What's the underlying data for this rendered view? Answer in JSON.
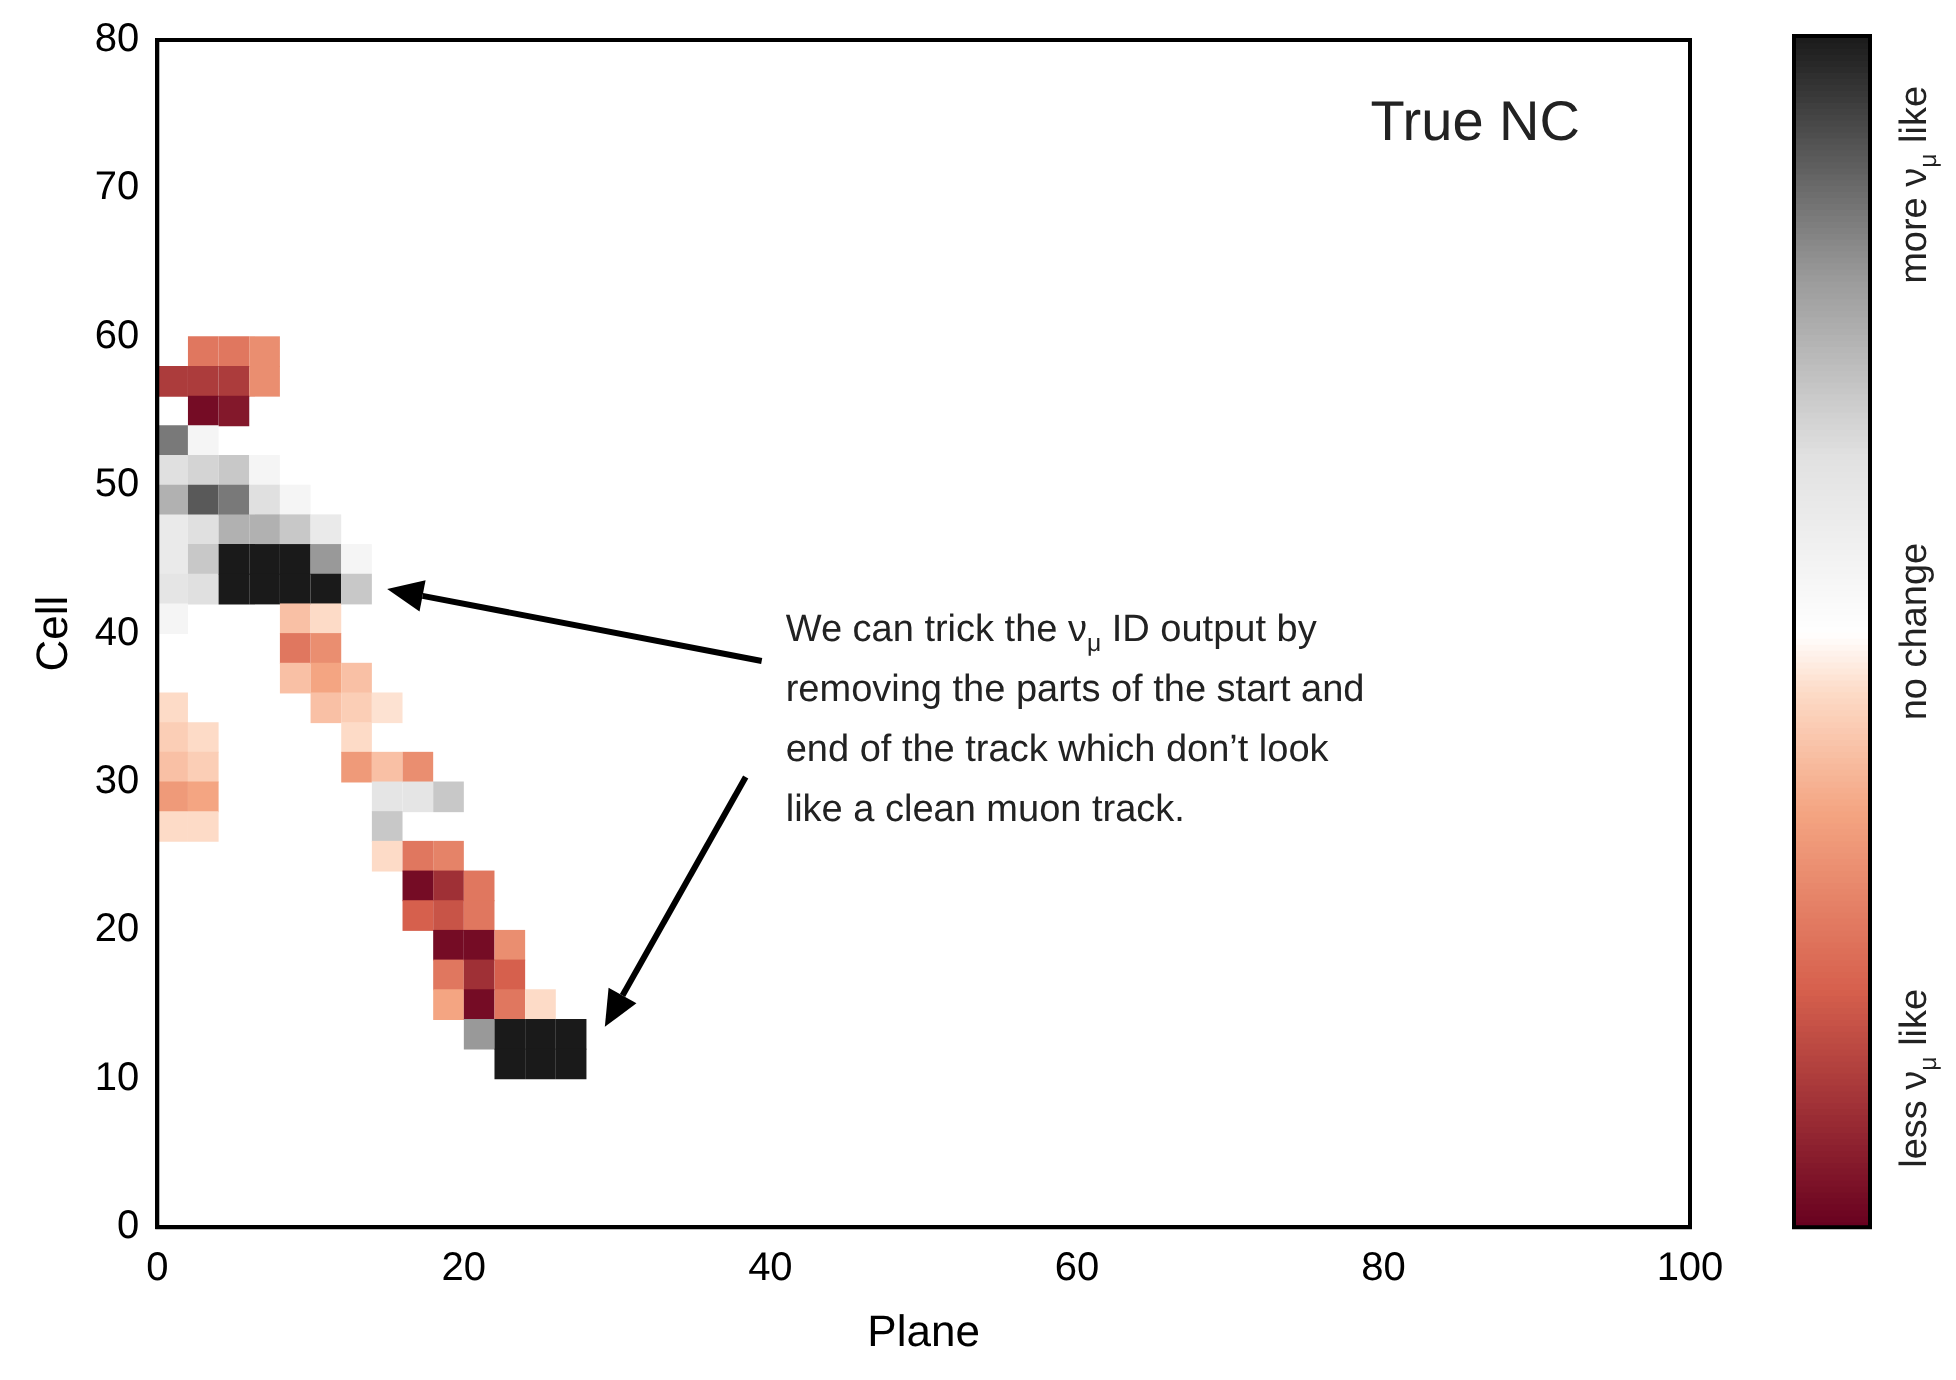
{
  "chart_data": {
    "type": "scatter",
    "xlabel": "Plane",
    "ylabel": "Cell",
    "marker": "square",
    "grid": false,
    "legend": false,
    "xlim": [
      0,
      100
    ],
    "xticks": [
      0,
      20,
      40,
      60,
      80,
      100
    ],
    "ylim": [
      0,
      80
    ],
    "yticks": [
      0,
      10,
      20,
      30,
      40,
      50,
      60,
      70,
      80
    ],
    "clim": [
      -1,
      1
    ],
    "cticks": [
      {
        "value": -0.75,
        "label": "less ν$_{μ}$ like"
      },
      {
        "value": 0,
        "label": "no change"
      },
      {
        "value": 0.75,
        "label": "more ν$_{μ}$ like"
      }
    ],
    "annotations": [
      "True NC",
      "We can trick the ν$_{μ}$ ID output by removing the parts of the start and end of the track which don’t look like a clean muon track."
    ],
    "x": [
      3,
      5,
      7,
      1,
      3,
      5,
      7,
      3,
      5,
      1,
      3,
      1,
      3,
      5,
      7,
      1,
      3,
      5,
      7,
      9,
      1,
      3,
      5,
      7,
      9,
      11,
      1,
      3,
      5,
      7,
      9,
      11,
      13,
      1,
      3,
      5,
      7,
      9,
      11,
      13,
      1,
      9,
      11,
      9,
      11,
      9,
      11,
      13,
      11,
      13,
      15,
      13,
      13,
      15,
      17,
      15,
      17,
      19,
      15,
      15,
      17,
      19,
      17,
      19,
      21,
      17,
      19,
      21,
      19,
      21,
      23,
      19,
      21,
      23,
      19,
      21,
      23,
      25,
      21,
      23,
      25,
      27,
      23,
      25,
      27,
      1,
      1,
      3,
      1,
      3,
      1,
      3,
      1,
      3
    ],
    "values": [
      59,
      59,
      59,
      57,
      57,
      57,
      57,
      55,
      55,
      53,
      53,
      51,
      51,
      51,
      51,
      49,
      49,
      49,
      49,
      49,
      47,
      47,
      47,
      47,
      47,
      47,
      45,
      45,
      45,
      45,
      45,
      45,
      45,
      43,
      43,
      43,
      43,
      43,
      43,
      43,
      41,
      41,
      41,
      39,
      39,
      37,
      37,
      37,
      35,
      35,
      35,
      33,
      31,
      31,
      31,
      29,
      29,
      29,
      27,
      25,
      25,
      25,
      23,
      23,
      23,
      21,
      21,
      21,
      19,
      19,
      19,
      17,
      17,
      17,
      15,
      15,
      15,
      15,
      13,
      13,
      13,
      13,
      11,
      11,
      11,
      35,
      33,
      33,
      31,
      31,
      29,
      29,
      27,
      27
    ],
    "cvalues": [
      -0.5,
      -0.5,
      -0.4,
      -0.75,
      -0.75,
      -0.75,
      -0.4,
      -0.95,
      -0.9,
      0.7,
      0.1,
      0.3,
      0.35,
      0.4,
      0.1,
      0.5,
      0.8,
      0.7,
      0.3,
      0.1,
      0.2,
      0.3,
      0.5,
      0.5,
      0.4,
      0.2,
      0.2,
      0.4,
      1,
      1,
      1,
      0.6,
      0.1,
      0.25,
      0.3,
      1,
      1,
      1,
      1,
      0.4,
      0.1,
      -0.2,
      -0.1,
      -0.5,
      -0.4,
      -0.2,
      -0.3,
      -0.2,
      -0.2,
      -0.15,
      -0.08,
      -0.1,
      -0.35,
      -0.2,
      -0.4,
      0.25,
      0.25,
      0.4,
      0.4,
      -0.1,
      -0.5,
      -0.45,
      -0.95,
      -0.8,
      -0.5,
      -0.6,
      -0.65,
      -0.5,
      -0.95,
      -0.95,
      -0.4,
      -0.5,
      -0.8,
      -0.6,
      -0.3,
      -0.95,
      -0.5,
      -0.1,
      0.6,
      1,
      1,
      1,
      1,
      1,
      1,
      -0.1,
      -0.15,
      -0.1,
      -0.2,
      -0.15,
      -0.35,
      -0.3,
      -0.1,
      -0.1
    ]
  }
}
